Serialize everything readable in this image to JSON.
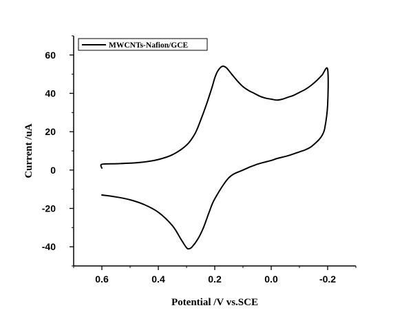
{
  "chart_data": {
    "type": "line",
    "title": "",
    "xlabel": "Potential /V vs.SCE",
    "ylabel": "Current /uA",
    "x_axis_reversed": true,
    "xlim": [
      0.7,
      -0.3
    ],
    "ylim": [
      -50,
      70
    ],
    "xticks": [
      0.6,
      0.4,
      0.2,
      0.0,
      -0.2
    ],
    "xtick_labels": [
      "0.6",
      "0.4",
      "0.2",
      "0.0",
      "-0.2"
    ],
    "yticks": [
      -40,
      -20,
      0,
      20,
      40,
      60
    ],
    "ytick_labels": [
      "-40",
      "-20",
      "0",
      "20",
      "40",
      "60"
    ],
    "grid": false,
    "legend_position": "top-left",
    "series": [
      {
        "name": "MWCNTs-Nafion/GCE",
        "color": "#000000",
        "x": [
          0.6,
          0.6,
          0.55,
          0.5,
          0.45,
          0.4,
          0.35,
          0.3,
          0.27,
          0.25,
          0.23,
          0.21,
          0.2,
          0.19,
          0.175,
          0.16,
          0.14,
          0.12,
          0.1,
          0.08,
          0.06,
          0.04,
          0.02,
          0.0,
          -0.02,
          -0.04,
          -0.06,
          -0.08,
          -0.1,
          -0.12,
          -0.14,
          -0.16,
          -0.18,
          -0.2,
          -0.2,
          -0.19,
          -0.18,
          -0.17,
          -0.16,
          -0.14,
          -0.12,
          -0.1,
          -0.06,
          -0.02,
          0.0,
          0.05,
          0.1,
          0.15,
          0.2,
          0.22,
          0.24,
          0.26,
          0.28,
          0.29,
          0.3,
          0.32,
          0.35,
          0.4,
          0.45,
          0.5,
          0.55,
          0.6
        ],
        "y": [
          1,
          3,
          3.3,
          3.6,
          4.2,
          5.5,
          8,
          13,
          19,
          26,
          34,
          43,
          48,
          51.5,
          54,
          53.5,
          50,
          46.5,
          43.5,
          41.5,
          40,
          38.5,
          37.5,
          37,
          36.5,
          37,
          38,
          39,
          40.5,
          42,
          44,
          46.5,
          49.5,
          52.5,
          34,
          22,
          18,
          16,
          14.5,
          12,
          10.5,
          9.5,
          7.5,
          6,
          5,
          3,
          0,
          -4,
          -15,
          -22,
          -30,
          -36,
          -40,
          -41,
          -40.5,
          -36,
          -29,
          -22,
          -18,
          -15.5,
          -14,
          -13
        ]
      }
    ]
  }
}
